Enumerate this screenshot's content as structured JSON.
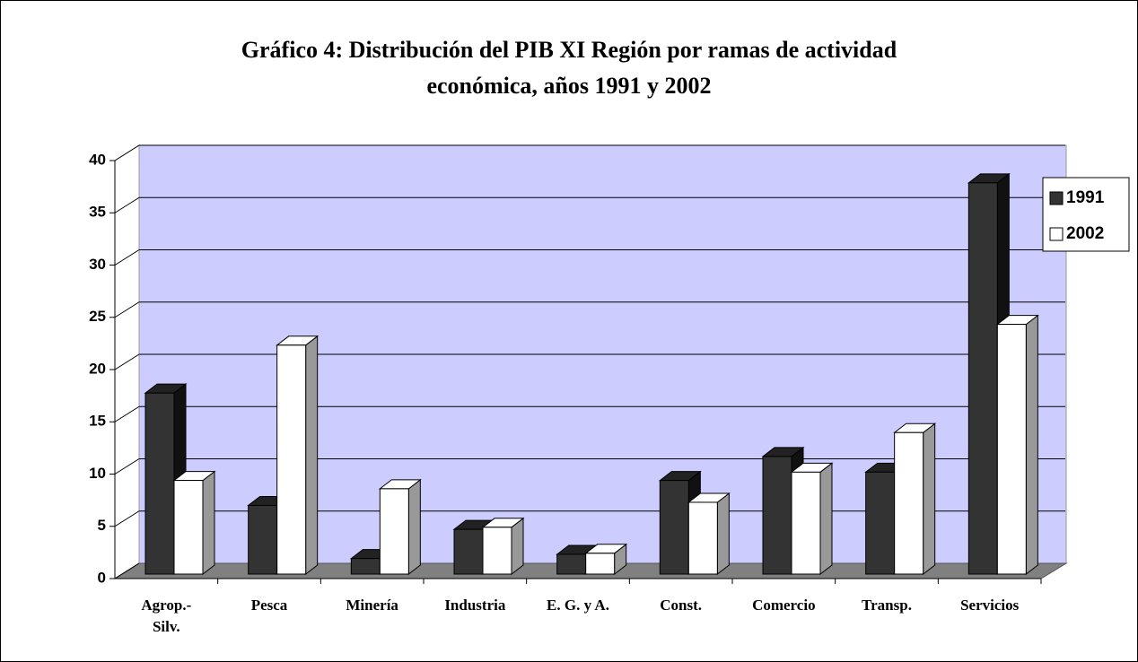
{
  "chart_data": {
    "type": "bar3d",
    "title": [
      "Gráfico 4: Distribución del PIB XI Región por ramas de actividad",
      "económica, años 1991 y 2002"
    ],
    "categories": [
      "Agrop.-\nSilv.",
      "Pesca",
      "Minería",
      "Industria",
      "E. G. y A.",
      "Const.",
      "Comercio",
      "Transp.",
      "Servicios"
    ],
    "series": [
      {
        "name": "1991",
        "color": "#333333",
        "values": [
          17.4,
          6.6,
          1.5,
          4.3,
          1.9,
          9.0,
          11.3,
          9.8,
          37.6
        ]
      },
      {
        "name": "2002",
        "color": "#ffffff",
        "values": [
          9.0,
          22.0,
          8.2,
          4.5,
          2.0,
          6.9,
          9.8,
          13.6,
          24.0
        ]
      }
    ],
    "ylim": [
      0,
      40
    ],
    "yticks": [
      0,
      5,
      10,
      15,
      20,
      25,
      30,
      35,
      40
    ],
    "grid": true,
    "legend": "right"
  }
}
